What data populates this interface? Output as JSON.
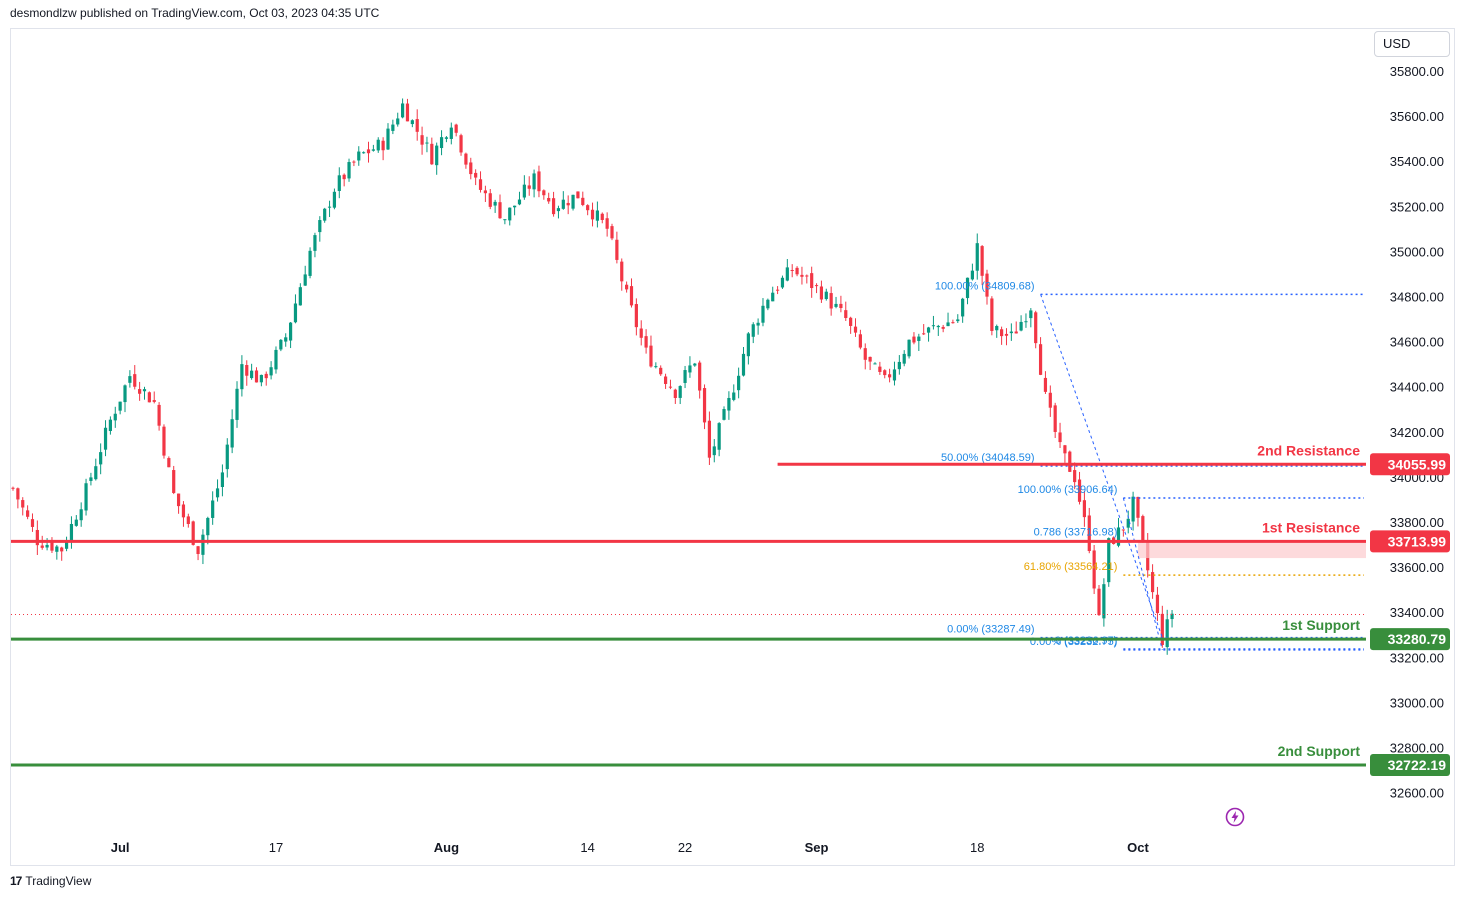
{
  "header": {
    "published_text": "desmondlzw published on TradingView.com, Oct 03, 2023 04:35 UTC"
  },
  "currency_button": {
    "label": "USD"
  },
  "footer": {
    "logo_glyph": "17",
    "brand": "TradingView"
  },
  "colors": {
    "up": "#089981",
    "down": "#f23645",
    "resistance": "#f23645",
    "support": "#388e3c",
    "fib": "#2962ff",
    "fib_text": "#1e88e5",
    "fib_gold": "#e8a400",
    "zone_fill": "#fccbcd",
    "lightning": "#9c27b0"
  },
  "chart_data": {
    "type": "candlestick",
    "symbol_currency": "USD",
    "ylim": [
      32500,
      35950
    ],
    "y_ticks": [
      35800,
      35600,
      35400,
      35200,
      35000,
      34800,
      34600,
      34400,
      34200,
      34000,
      33800,
      33600,
      33400,
      33200,
      33000,
      32800,
      32600
    ],
    "y_tick_labels": [
      "35800.00",
      "35600.00",
      "35400.00",
      "35200.00",
      "35000.00",
      "34800.00",
      "34600.00",
      "34400.00",
      "34200.00",
      "34000.00",
      "33800.00",
      "33600.00",
      "33400.00",
      "33200.00",
      "33000.00",
      "32800.00",
      "32600.00"
    ],
    "x_ticks": [
      {
        "label": "Jul",
        "bold": true,
        "bar": 22
      },
      {
        "label": "17",
        "bold": false,
        "bar": 54
      },
      {
        "label": "Aug",
        "bold": true,
        "bar": 89
      },
      {
        "label": "14",
        "bold": false,
        "bar": 118
      },
      {
        "label": "22",
        "bold": false,
        "bar": 138
      },
      {
        "label": "Sep",
        "bold": true,
        "bar": 165
      },
      {
        "label": "18",
        "bold": false,
        "bar": 198
      },
      {
        "label": "Oct",
        "bold": true,
        "bar": 231
      }
    ],
    "bar_count": 250,
    "price_path": [
      [
        0,
        33950
      ],
      [
        5,
        33720
      ],
      [
        10,
        33680
      ],
      [
        15,
        33940
      ],
      [
        20,
        34250
      ],
      [
        24,
        34450
      ],
      [
        29,
        34330
      ],
      [
        33,
        33920
      ],
      [
        38,
        33680
      ],
      [
        43,
        34020
      ],
      [
        47,
        34500
      ],
      [
        51,
        34420
      ],
      [
        56,
        34620
      ],
      [
        61,
        35000
      ],
      [
        66,
        35280
      ],
      [
        71,
        35420
      ],
      [
        76,
        35480
      ],
      [
        80,
        35650
      ],
      [
        86,
        35420
      ],
      [
        90,
        35580
      ],
      [
        95,
        35300
      ],
      [
        101,
        35150
      ],
      [
        107,
        35320
      ],
      [
        111,
        35200
      ],
      [
        116,
        35250
      ],
      [
        122,
        35100
      ],
      [
        126,
        34800
      ],
      [
        130,
        34550
      ],
      [
        136,
        34380
      ],
      [
        140,
        34520
      ],
      [
        143,
        34080
      ],
      [
        147,
        34330
      ],
      [
        151,
        34620
      ],
      [
        155,
        34800
      ],
      [
        160,
        34920
      ],
      [
        166,
        34820
      ],
      [
        171,
        34700
      ],
      [
        175,
        34520
      ],
      [
        179,
        34420
      ],
      [
        184,
        34600
      ],
      [
        189,
        34660
      ],
      [
        194,
        34700
      ],
      [
        198,
        35020
      ],
      [
        201,
        34650
      ],
      [
        205,
        34620
      ],
      [
        209,
        34760
      ],
      [
        212,
        34350
      ],
      [
        215,
        34120
      ],
      [
        218,
        34000
      ],
      [
        221,
        33700
      ],
      [
        223,
        33360
      ],
      [
        225,
        33700
      ],
      [
        228,
        33780
      ],
      [
        230,
        33880
      ],
      [
        232,
        33690
      ],
      [
        234,
        33480
      ],
      [
        236,
        33280
      ],
      [
        238,
        33400
      ]
    ],
    "last_price": 33390,
    "levels": [
      {
        "name": "2nd Resistance",
        "value": 34055.99,
        "label": "34055.99",
        "kind": "resistance"
      },
      {
        "name": "1st Resistance",
        "value": 33713.99,
        "label": "33713.99",
        "kind": "resistance"
      },
      {
        "name": "1st Support",
        "value": 33280.79,
        "label": "33280.79",
        "kind": "support"
      },
      {
        "name": "2nd Support",
        "value": 32722.19,
        "label": "32722.19",
        "kind": "support"
      }
    ],
    "fib_sets": [
      {
        "from_bar": 211,
        "to_bar": 238,
        "levels": [
          {
            "text": "100.00% (34809.68)",
            "value": 34809.68,
            "color": "fib_text"
          },
          {
            "text": "50.00% (34048.59)",
            "value": 34048.59,
            "color": "fib_text"
          },
          {
            "text": "0.00% (33287.49)",
            "value": 33287.49,
            "color": "fib_text"
          }
        ]
      },
      {
        "from_bar": 228,
        "to_bar": 238,
        "levels": [
          {
            "text": "100.00% (33906.64)",
            "value": 33906.64,
            "color": "fib_text"
          },
          {
            "text": "0.786 (33716.98)",
            "value": 33716.98,
            "color": "fib_text"
          },
          {
            "text": "61.80% (33564.21)",
            "value": 33564.21,
            "color": "fib_gold"
          },
          {
            "text": "0 (33236.97)",
            "value": 33236.97,
            "color": "fib_text"
          },
          {
            "text": "0.00% (33232.75)",
            "value": 33232.75,
            "color": "fib_text"
          }
        ]
      }
    ]
  }
}
